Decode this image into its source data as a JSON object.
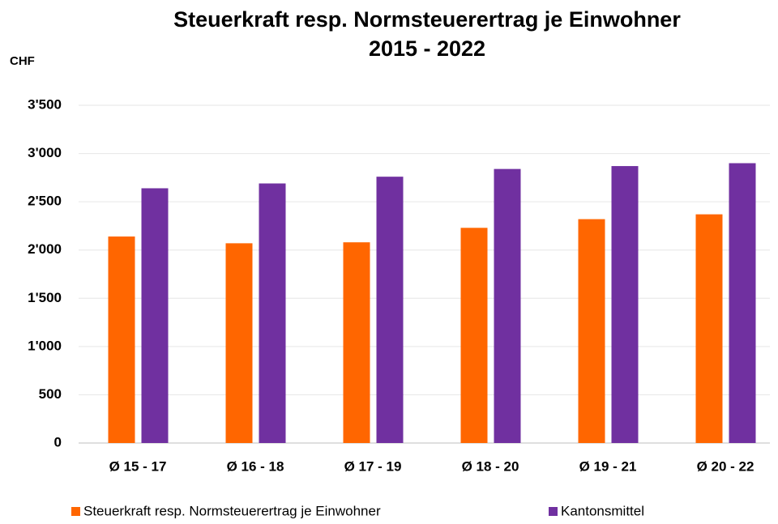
{
  "chart_data": {
    "type": "bar",
    "title": "Steuerkraft resp. Normsteuerertrag je Einwohner",
    "subtitle": "2015 - 2022",
    "y_label": "CHF",
    "categories": [
      "Ø 15 - 17",
      "Ø 16 - 18",
      "Ø 17 - 19",
      "Ø 18 - 20",
      "Ø 19 - 21",
      "Ø 20 - 22"
    ],
    "series": [
      {
        "name": "Steuerkraft resp. Normsteuerertrag je Einwohner",
        "color": "#ff6600",
        "values": [
          2140,
          2070,
          2080,
          2230,
          2320,
          2370
        ]
      },
      {
        "name": "Kantonsmittel",
        "color": "#7030a0",
        "values": [
          2640,
          2690,
          2760,
          2840,
          2870,
          2900
        ]
      }
    ],
    "ylim": [
      0,
      3500
    ],
    "yticks": [
      0,
      500,
      {
        "value": 1000,
        "label": "1'000"
      },
      {
        "value": 1500,
        "label": "1'500"
      },
      {
        "value": 2000,
        "label": "2'000"
      },
      {
        "value": 2500,
        "label": "2'500"
      },
      {
        "value": 3000,
        "label": "3'000"
      },
      {
        "value": 3500,
        "label": "3'500"
      }
    ],
    "grid": true,
    "legend": "bottom"
  }
}
